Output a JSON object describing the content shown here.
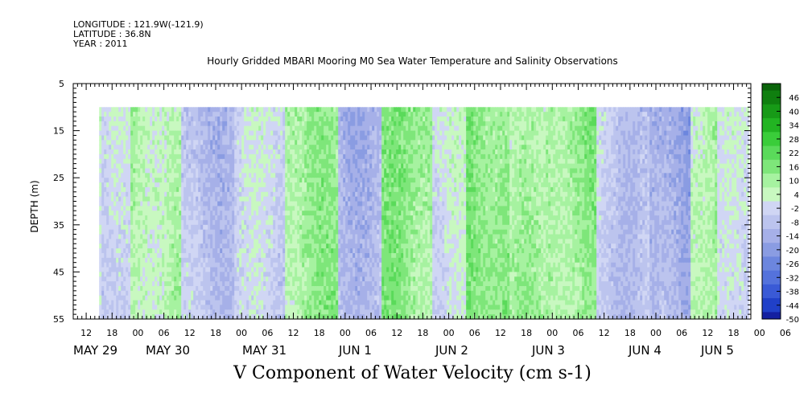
{
  "meta": {
    "longitude": "LONGITUDE : 121.9W(-121.9)",
    "latitude": "LATITUDE : 36.8N",
    "year": "YEAR : 2011"
  },
  "chart_data": {
    "type": "heatmap",
    "title": "Hourly Gridded MBARI Mooring M0 Sea Water Temperature and Salinity Observations",
    "xlabel": "V Component of Water Velocity (cm s-1)",
    "ylabel": "DEPTH (m)",
    "y_ticks": [
      5,
      15,
      25,
      35,
      45,
      55
    ],
    "y_range": [
      55,
      5
    ],
    "hour_tick_labels": [
      "12",
      "18",
      "00",
      "06",
      "12",
      "18",
      "00",
      "06",
      "12",
      "18",
      "00",
      "06",
      "12",
      "18",
      "00",
      "06",
      "12",
      "18",
      "00",
      "06",
      "12",
      "18",
      "00",
      "06",
      "12",
      "18",
      "00",
      "06"
    ],
    "day_labels": [
      "MAY 29",
      "MAY 30",
      "MAY 31",
      "JUN  1",
      "JUN  2",
      "JUN  3",
      "JUN  4",
      "JUN  5"
    ],
    "x_range_hours_from_may29_00": [
      9,
      166
    ],
    "data_start_hour": 15,
    "data_end_hour": 165,
    "data_top_depth": 10,
    "colorbar_levels": [
      "46",
      "40",
      "34",
      "28",
      "22",
      "16",
      "10",
      "4",
      "-2",
      "-8",
      "-14",
      "-20",
      "-26",
      "-32",
      "-38",
      "-44",
      "-50"
    ],
    "colorbar_range": [
      -50,
      52
    ],
    "colors": {
      "neg": [
        "#0a0a5c",
        "#1420a0",
        "#2040c8",
        "#3a5ad6",
        "#5472dc",
        "#6c86de",
        "#8a9ce2",
        "#a6b0e8",
        "#bcc4ee",
        "#d0d6f4"
      ],
      "pos": [
        "#c8f8c0",
        "#a6f2a0",
        "#7ee67a",
        "#5ada5a",
        "#3acd3a",
        "#22b422",
        "#179a17",
        "#0f7f0f",
        "#0a640a",
        "#064806"
      ]
    },
    "field_description_bands": [
      {
        "start_hour": 15,
        "end_hour": 22,
        "mean": -6
      },
      {
        "start_hour": 22,
        "end_hour": 34,
        "mean": 6
      },
      {
        "start_hour": 34,
        "end_hour": 46,
        "mean": -10
      },
      {
        "start_hour": 46,
        "end_hour": 58,
        "mean": -4
      },
      {
        "start_hour": 58,
        "end_hour": 70,
        "mean": 10
      },
      {
        "start_hour": 70,
        "end_hour": 80,
        "mean": -12
      },
      {
        "start_hour": 80,
        "end_hour": 92,
        "mean": 12
      },
      {
        "start_hour": 92,
        "end_hour": 100,
        "mean": -2
      },
      {
        "start_hour": 100,
        "end_hour": 110,
        "mean": 14
      },
      {
        "start_hour": 110,
        "end_hour": 118,
        "mean": 6
      },
      {
        "start_hour": 118,
        "end_hour": 130,
        "mean": 10
      },
      {
        "start_hour": 130,
        "end_hour": 142,
        "mean": -8
      },
      {
        "start_hour": 142,
        "end_hour": 152,
        "mean": -16
      },
      {
        "start_hour": 152,
        "end_hour": 158,
        "mean": 8
      },
      {
        "start_hour": 158,
        "end_hour": 165,
        "mean": -4
      }
    ]
  }
}
